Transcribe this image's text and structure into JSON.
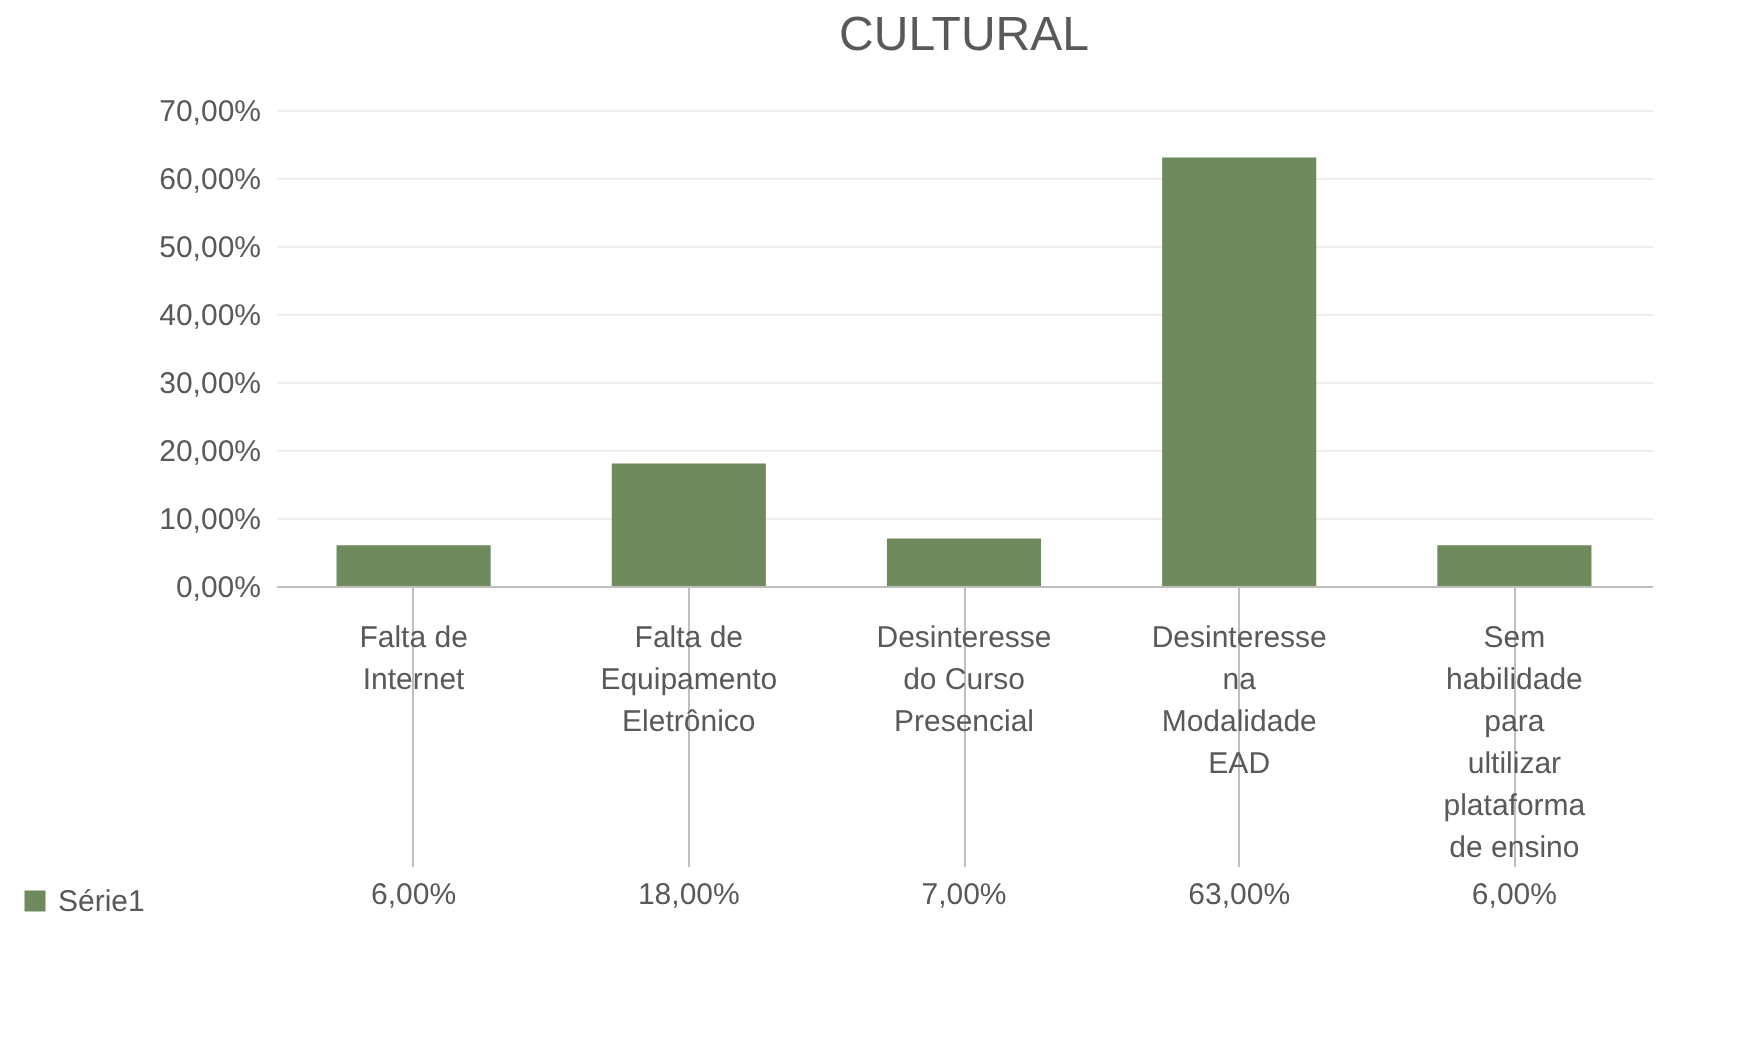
{
  "chart_data": {
    "type": "bar",
    "title": "CULTURAL",
    "categories": [
      "Falta de Internet",
      "Falta de Equipamento Eletrônico",
      "Desinteresse do Curso Presencial",
      "Desinteresse na Modalidade EAD",
      "Sem habilidade para ultilizar plataforma de ensino"
    ],
    "series": [
      {
        "name": "Série1",
        "color": "#6f8a5c",
        "values": [
          6,
          18,
          7,
          63,
          6
        ],
        "value_labels": [
          "6,00%",
          "18,00%",
          "7,00%",
          "63,00%",
          "6,00%"
        ]
      }
    ],
    "ylim": [
      0,
      70
    ],
    "yticks": [
      {
        "value": 0,
        "label": "0,00%"
      },
      {
        "value": 10,
        "label": "10,00%"
      },
      {
        "value": 20,
        "label": "20,00%"
      },
      {
        "value": 30,
        "label": "30,00%"
      },
      {
        "value": 40,
        "label": "40,00%"
      },
      {
        "value": 50,
        "label": "50,00%"
      },
      {
        "value": 60,
        "label": "60,00%"
      },
      {
        "value": 70,
        "label": "70,00%"
      }
    ],
    "grid": true,
    "legend": "bottom left"
  }
}
